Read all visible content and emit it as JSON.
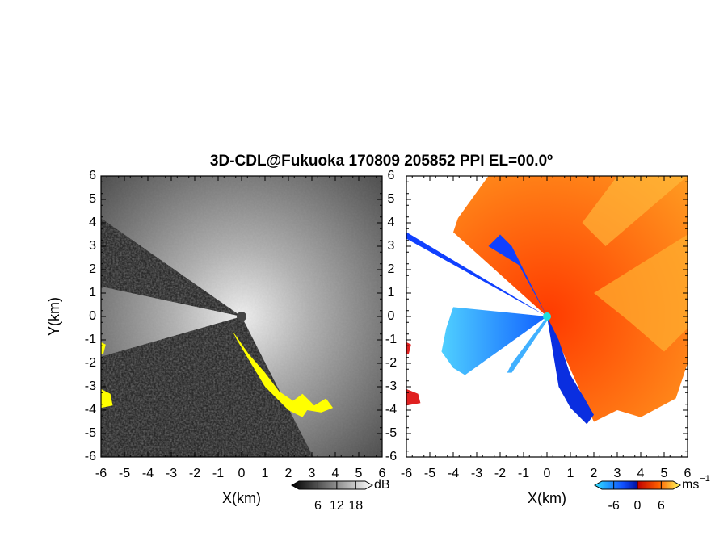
{
  "title": "3D-CDL@Fukuoka 170809 205852 PPI EL=00.0º",
  "chart_data": [
    {
      "type": "ppi",
      "field": "gray",
      "xlabel": "X(km)",
      "ylabel": "Y(km)",
      "xlim": [
        -6,
        6
      ],
      "ylim": [
        -6,
        6
      ],
      "xticks": [
        -6,
        -5,
        -4,
        -3,
        -2,
        -1,
        0,
        1,
        2,
        3,
        4,
        5,
        6
      ],
      "yticks": [
        -6,
        -5,
        -4,
        -3,
        -2,
        -1,
        0,
        1,
        2,
        3,
        4,
        5,
        6
      ],
      "colorbar": {
        "label": "dB",
        "lim": [
          0,
          21
        ],
        "ticks": [
          6,
          12,
          18
        ]
      }
    },
    {
      "type": "ppi",
      "field": "velocity",
      "xlabel": "X(km)",
      "xlim": [
        -6,
        6
      ],
      "ylim": [
        -6,
        6
      ],
      "xticks": [
        -6,
        -5,
        -4,
        -3,
        -2,
        -1,
        0,
        1,
        2,
        3,
        4,
        5,
        6
      ],
      "yticks": [
        -6,
        -5,
        -4,
        -3,
        -2,
        -1,
        0,
        1,
        2,
        3,
        4,
        5,
        6
      ],
      "colorbar": {
        "label": "ms",
        "label_sup": "−1",
        "lim": [
          -9,
          9
        ],
        "ticks": [
          -6,
          0,
          6
        ]
      }
    }
  ]
}
